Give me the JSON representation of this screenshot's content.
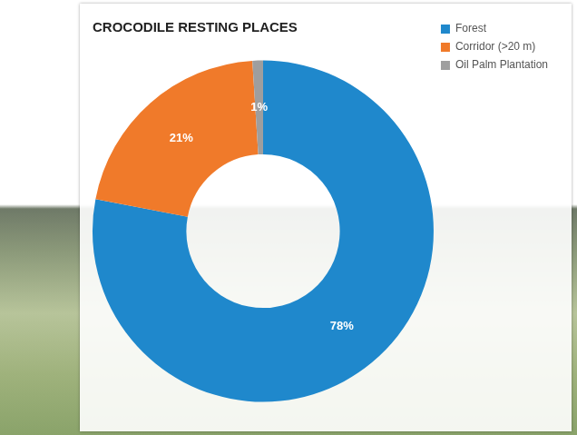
{
  "chart_data": {
    "type": "doughnut",
    "title": "CROCODILE RESTING PLACES",
    "categories": [
      "Forest",
      "Corridor (>20 m)",
      "Oil Palm Plantation"
    ],
    "values": [
      78,
      21,
      1
    ],
    "value_labels": [
      "78%",
      "21%",
      "1%"
    ],
    "colors": [
      "#1f88cc",
      "#f07a2a",
      "#9e9e9e"
    ],
    "legend": "right",
    "data_labels": true
  }
}
